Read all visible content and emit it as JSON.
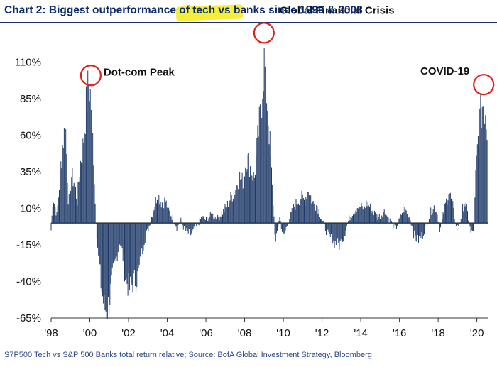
{
  "header": {
    "title_part1": "Chart 2: Biggest outperformance of ",
    "title_highlight": "tech vs banks",
    "title_part2": " since 1999 & 2008",
    "highlight_color": "#f5ee3a"
  },
  "footer": {
    "source": "S7P500 Tech vs  S&P 500 Banks total return relative; Source: BofA Global Investment Strategy, Bloomberg"
  },
  "colors": {
    "bars": "#1f3a68",
    "circles": "#e0201b",
    "title": "#0b2a6b"
  },
  "chart_data": {
    "type": "bar",
    "title": "Chart 2: Biggest outperformance of tech vs banks since 1999 & 2008",
    "xlabel": "",
    "ylabel": "",
    "xlim": [
      1998,
      2020.6
    ],
    "ylim": [
      -65,
      135
    ],
    "y_ticks": [
      110,
      85,
      60,
      35,
      10,
      -15,
      -40,
      -65
    ],
    "y_tick_labels": [
      "110%",
      "85%",
      "60%",
      "35%",
      "10%",
      "-15%",
      "-40%",
      "-65%"
    ],
    "x_ticks": [
      1998,
      2000,
      2002,
      2004,
      2006,
      2008,
      2010,
      2012,
      2014,
      2016,
      2018,
      2020
    ],
    "x_tick_labels": [
      "'98",
      "'00",
      "'02",
      "'04",
      "'06",
      "'08",
      "'10",
      "'12",
      "'14",
      "'16",
      "'18",
      "'20"
    ],
    "grid": false,
    "series_anchors": [
      [
        1998.0,
        -5
      ],
      [
        1998.1,
        18
      ],
      [
        1998.3,
        5
      ],
      [
        1998.45,
        30
      ],
      [
        1998.6,
        55
      ],
      [
        1998.75,
        66
      ],
      [
        1998.9,
        12
      ],
      [
        1999.05,
        32
      ],
      [
        1999.2,
        28
      ],
      [
        1999.35,
        15
      ],
      [
        1999.5,
        40
      ],
      [
        1999.65,
        52
      ],
      [
        1999.8,
        78
      ],
      [
        1999.95,
        97
      ],
      [
        2000.05,
        85
      ],
      [
        2000.2,
        45
      ],
      [
        2000.3,
        5
      ],
      [
        2000.45,
        -25
      ],
      [
        2000.6,
        -45
      ],
      [
        2000.75,
        -58
      ],
      [
        2000.9,
        -60
      ],
      [
        2001.05,
        -50
      ],
      [
        2001.2,
        -35
      ],
      [
        2001.4,
        -22
      ],
      [
        2001.55,
        -12
      ],
      [
        2001.7,
        -22
      ],
      [
        2001.85,
        -38
      ],
      [
        2002.05,
        -45
      ],
      [
        2002.25,
        -40
      ],
      [
        2002.45,
        -38
      ],
      [
        2002.6,
        -28
      ],
      [
        2002.8,
        -12
      ],
      [
        2003.0,
        -5
      ],
      [
        2003.2,
        5
      ],
      [
        2003.5,
        20
      ],
      [
        2003.7,
        14
      ],
      [
        2003.9,
        15
      ],
      [
        2004.1,
        8
      ],
      [
        2004.3,
        3
      ],
      [
        2004.5,
        -3
      ],
      [
        2004.7,
        2
      ],
      [
        2004.9,
        -5
      ],
      [
        2005.2,
        -8
      ],
      [
        2005.5,
        -3
      ],
      [
        2005.8,
        4
      ],
      [
        2006.0,
        2
      ],
      [
        2006.3,
        6
      ],
      [
        2006.6,
        3
      ],
      [
        2006.9,
        8
      ],
      [
        2007.1,
        12
      ],
      [
        2007.3,
        18
      ],
      [
        2007.5,
        22
      ],
      [
        2007.7,
        32
      ],
      [
        2007.9,
        28
      ],
      [
        2008.1,
        45
      ],
      [
        2008.3,
        38
      ],
      [
        2008.5,
        30
      ],
      [
        2008.7,
        60
      ],
      [
        2008.85,
        78
      ],
      [
        2009.0,
        112
      ],
      [
        2009.15,
        88
      ],
      [
        2009.3,
        55
      ],
      [
        2009.45,
        20
      ],
      [
        2009.6,
        -15
      ],
      [
        2009.8,
        5
      ],
      [
        2010.0,
        -10
      ],
      [
        2010.3,
        3
      ],
      [
        2010.6,
        12
      ],
      [
        2010.9,
        18
      ],
      [
        2011.1,
        15
      ],
      [
        2011.3,
        24
      ],
      [
        2011.5,
        14
      ],
      [
        2011.75,
        12
      ],
      [
        2012.0,
        2
      ],
      [
        2012.3,
        -8
      ],
      [
        2012.6,
        -13
      ],
      [
        2012.9,
        -15
      ],
      [
        2013.1,
        -10
      ],
      [
        2013.4,
        3
      ],
      [
        2013.6,
        8
      ],
      [
        2013.9,
        12
      ],
      [
        2014.1,
        10
      ],
      [
        2014.35,
        14
      ],
      [
        2014.6,
        8
      ],
      [
        2014.9,
        4
      ],
      [
        2015.2,
        8
      ],
      [
        2015.5,
        2
      ],
      [
        2015.8,
        -4
      ],
      [
        2016.0,
        2
      ],
      [
        2016.2,
        10
      ],
      [
        2016.5,
        6
      ],
      [
        2016.75,
        -8
      ],
      [
        2016.95,
        -12
      ],
      [
        2017.2,
        -8
      ],
      [
        2017.5,
        3
      ],
      [
        2017.75,
        12
      ],
      [
        2017.9,
        10
      ],
      [
        2018.1,
        -5
      ],
      [
        2018.3,
        8
      ],
      [
        2018.55,
        22
      ],
      [
        2018.75,
        12
      ],
      [
        2018.95,
        -5
      ],
      [
        2019.15,
        2
      ],
      [
        2019.35,
        15
      ],
      [
        2019.5,
        8
      ],
      [
        2019.7,
        -8
      ],
      [
        2019.85,
        -3
      ],
      [
        2019.95,
        35
      ],
      [
        2020.05,
        55
      ],
      [
        2020.15,
        70
      ],
      [
        2020.3,
        82
      ],
      [
        2020.45,
        78
      ],
      [
        2020.55,
        60
      ]
    ],
    "annotations": [
      {
        "text": "Dot-com Peak",
        "x": 2000.05,
        "y": 97
      },
      {
        "text": "Global Financial Crisis",
        "x": 2009.0,
        "y": 112
      },
      {
        "text": "COVID-19",
        "x": 2020.35,
        "y": 82
      }
    ]
  }
}
